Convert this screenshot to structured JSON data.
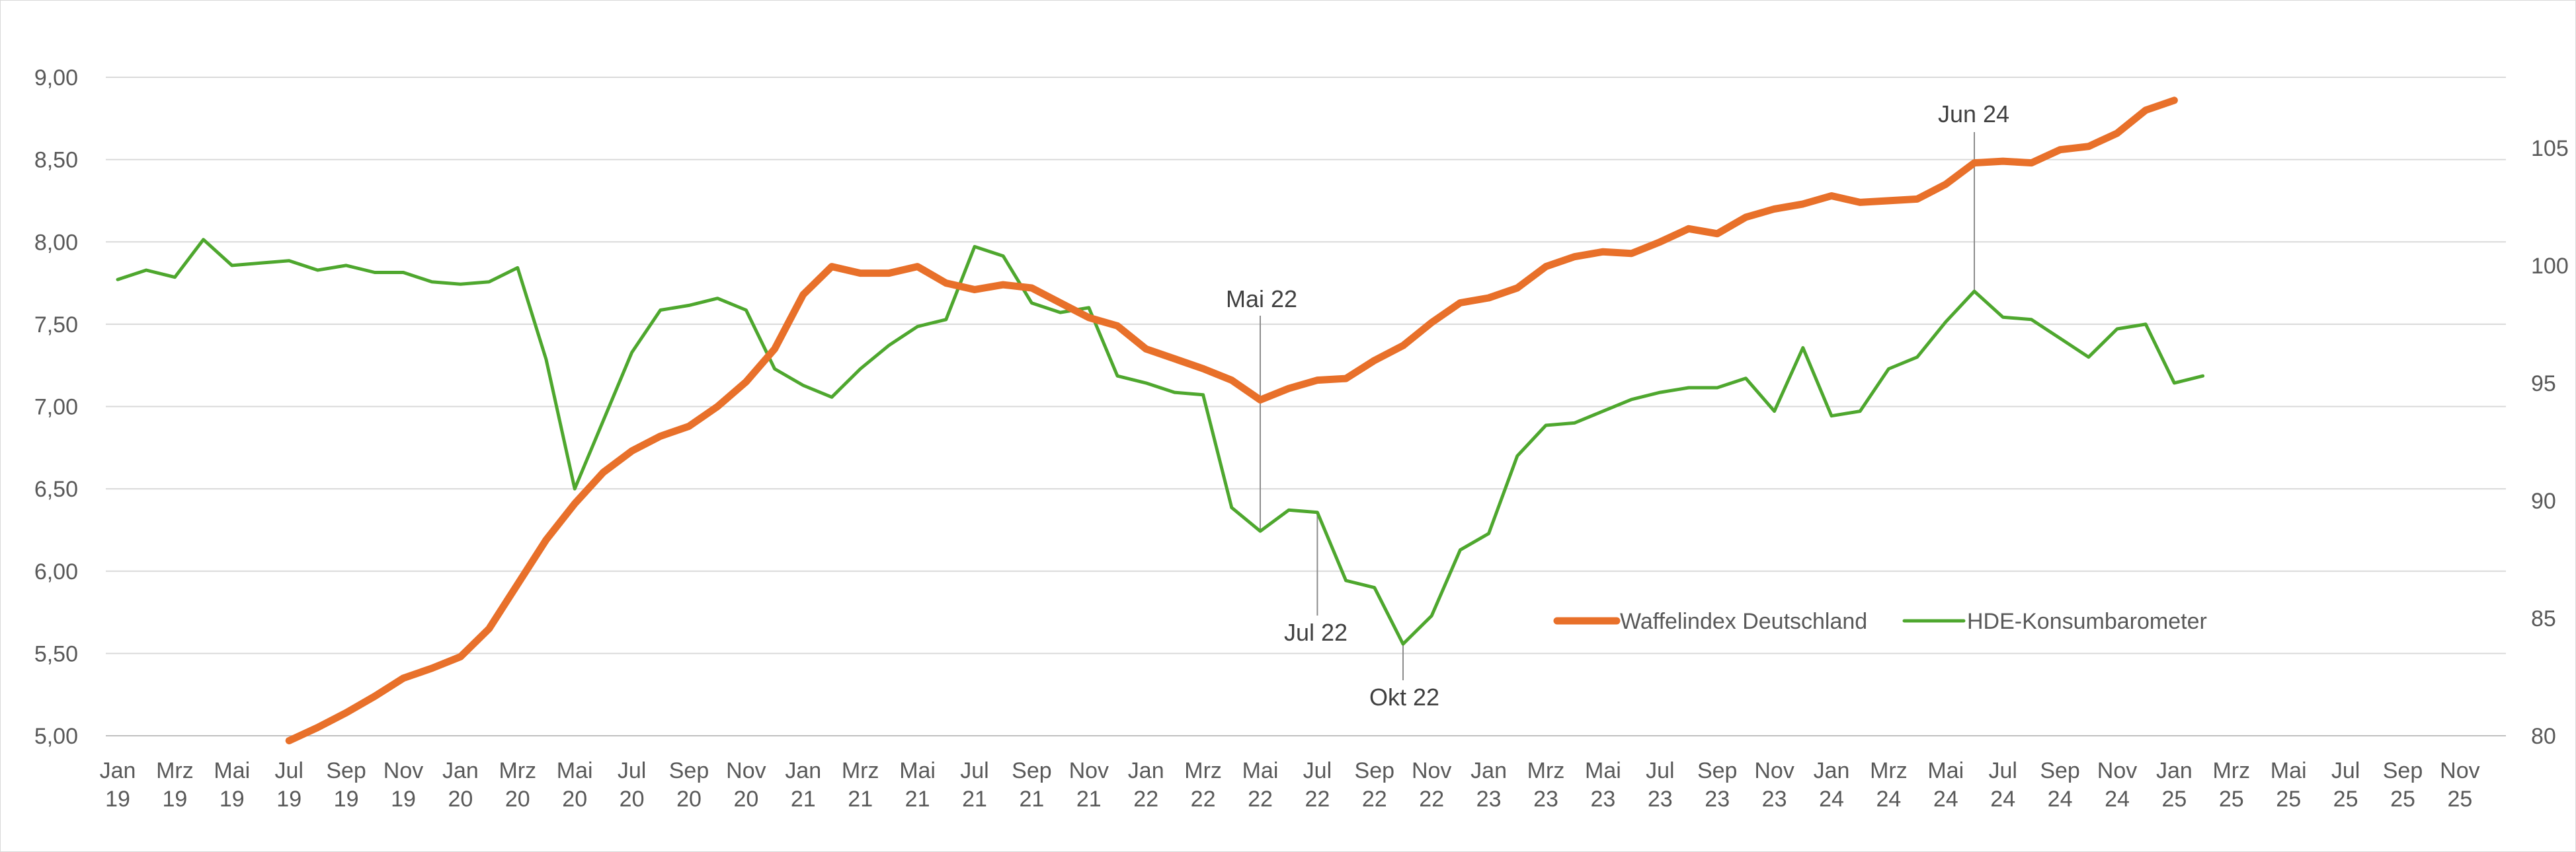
{
  "chart_data": {
    "type": "line",
    "title": "",
    "colors": {
      "waffle": "#E8702A",
      "hde": "#4EA72E",
      "grid": "#d9d9d9",
      "text": "#595959"
    },
    "x_labels": [
      "Jan 19",
      "Mrz 19",
      "Mai 19",
      "Jul 19",
      "Sep 19",
      "Nov 19",
      "Jan 20",
      "Mrz 20",
      "Mai 20",
      "Jul 20",
      "Sep 20",
      "Nov 20",
      "Jan 21",
      "Mrz 21",
      "Mai 21",
      "Jul 21",
      "Sep 21",
      "Nov 21",
      "Jan 22",
      "Mrz 22",
      "Mai 22",
      "Jul 22",
      "Sep 22",
      "Nov 22",
      "Jan 23",
      "Mrz 23",
      "Mai 23",
      "Jul 23",
      "Sep 23",
      "Nov 23",
      "Jan 24",
      "Mrz 24",
      "Mai 24",
      "Jul 24",
      "Sep 24",
      "Nov 24",
      "Jan 25",
      "Mrz 25",
      "Mai 25",
      "Jul 25",
      "Sep 25",
      "Nov 25"
    ],
    "y_left": {
      "min": 5.0,
      "max": 9.0,
      "ticks": [
        "5,00",
        "5,50",
        "6,00",
        "6,50",
        "7,00",
        "7,50",
        "8,00",
        "8,50",
        "9,00"
      ]
    },
    "y_right": {
      "min": 80,
      "max": 108,
      "ticks": [
        "80",
        "85",
        "90",
        "95",
        "100",
        "105"
      ]
    },
    "series": [
      {
        "name": "Waffelindex Deutschland",
        "axis": "left",
        "start_month": 6,
        "values": [
          4.97,
          5.05,
          5.14,
          5.24,
          5.35,
          5.41,
          5.48,
          5.65,
          5.92,
          6.19,
          6.41,
          6.6,
          6.73,
          6.82,
          6.88,
          7.0,
          7.15,
          7.35,
          7.68,
          7.85,
          7.81,
          7.81,
          7.85,
          7.75,
          7.71,
          7.74,
          7.72,
          7.63,
          7.54,
          7.49,
          7.35,
          7.29,
          7.23,
          7.16,
          7.04,
          7.11,
          7.16,
          7.17,
          7.28,
          7.37,
          7.51,
          7.63,
          7.66,
          7.72,
          7.85,
          7.91,
          7.94,
          7.93,
          8.0,
          8.08,
          8.05,
          8.15,
          8.2,
          8.23,
          8.28,
          8.24,
          8.25,
          8.26,
          8.35,
          8.48,
          8.49,
          8.48,
          8.56,
          8.58,
          8.66,
          8.8,
          8.86
        ]
      },
      {
        "name": "HDE-Konsumbarometer",
        "axis": "right",
        "start_month": 0,
        "values": [
          99.4,
          99.8,
          99.5,
          101.1,
          100.0,
          100.1,
          100.2,
          99.8,
          100.0,
          99.7,
          99.7,
          99.3,
          99.2,
          99.3,
          99.9,
          96.0,
          90.5,
          93.4,
          96.3,
          98.1,
          98.3,
          98.6,
          98.1,
          95.6,
          94.9,
          94.4,
          95.6,
          96.6,
          97.4,
          97.7,
          100.8,
          100.4,
          98.4,
          98.0,
          98.2,
          95.3,
          95.0,
          94.6,
          94.5,
          89.7,
          88.7,
          89.6,
          89.5,
          86.6,
          86.3,
          83.9,
          85.1,
          87.9,
          88.6,
          91.9,
          93.2,
          93.3,
          93.8,
          94.3,
          94.6,
          94.8,
          94.8,
          95.2,
          93.8,
          96.5,
          93.6,
          93.8,
          95.6,
          96.1,
          97.6,
          98.9,
          97.8,
          97.7,
          96.9,
          96.1,
          97.3,
          97.5,
          95.0,
          95.3
        ]
      }
    ],
    "annotations": [
      {
        "label": "Mai 22",
        "month_index": 40
      },
      {
        "label": "Jul 22",
        "month_index": 42
      },
      {
        "label": "Okt 22",
        "month_index": 45
      },
      {
        "label": "Jun 24",
        "month_index": 65
      }
    ],
    "legend": {
      "position": "bottom-right inside plot"
    },
    "grid": true
  }
}
